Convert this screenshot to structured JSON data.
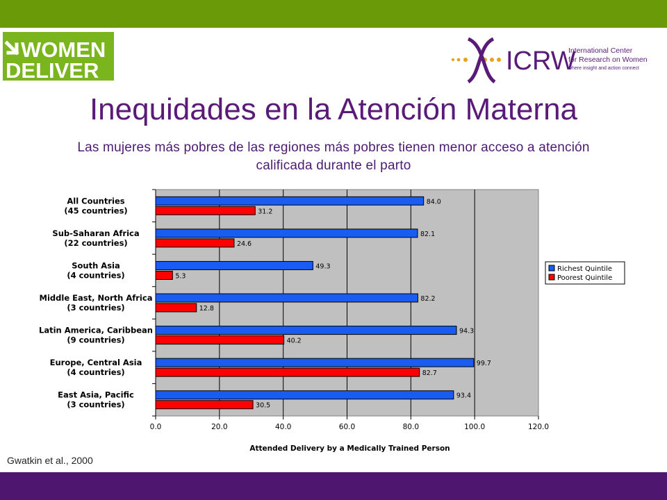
{
  "slide": {
    "title": "Inequidades en la Atención Materna",
    "subtitle_line1": "Las mujeres más pobres de las regiones más pobres tienen menor acceso a atención",
    "subtitle_line2": "calificada durante el parto",
    "source": "Gwatkin et al., 2000"
  },
  "logos": {
    "left_line1": "WOMEN",
    "left_line2": "DELIVER",
    "right_name": "ICRW",
    "right_line1": "International Center",
    "right_line2": "for Research on Women",
    "right_line3": "where insight and action connect"
  },
  "colors": {
    "top_bar": "#6a9a07",
    "bottom_bar": "#4f1670",
    "title": "#5a1a78",
    "richest": "#1a5cf2",
    "poorest": "#ff0000",
    "plot_bg": "#c0c0c0"
  },
  "chart_data": {
    "type": "bar",
    "orientation": "horizontal",
    "categories": [
      [
        "All Countries",
        "(45 countries)"
      ],
      [
        "Sub-Saharan Africa",
        "(22 countries)"
      ],
      [
        "South Asia",
        "(4 countries)"
      ],
      [
        "Middle East, North Africa",
        "(3 countries)"
      ],
      [
        "Latin America, Caribbean",
        "(9 countries)"
      ],
      [
        "Europe, Central Asia",
        "(4 countries)"
      ],
      [
        "East Asia, Pacific",
        "(3 countries)"
      ]
    ],
    "series": [
      {
        "name": "Richest Quintile",
        "values": [
          84.0,
          82.1,
          49.3,
          82.2,
          94.3,
          99.7,
          93.4
        ],
        "labels": [
          "84.0",
          "82.1",
          "49.3",
          "82.2",
          "94.3",
          "99.7",
          "93.4"
        ]
      },
      {
        "name": "Poorest Quintile",
        "values": [
          31.2,
          24.6,
          5.3,
          12.8,
          40.2,
          82.7,
          30.5
        ],
        "labels": [
          "31.2",
          "24.6",
          "5.3",
          "12.8",
          "40.2",
          "82.7",
          "30.5"
        ]
      }
    ],
    "xlabel": "Attended Delivery by a Medically Trained Person",
    "xlim": [
      0,
      120
    ],
    "xticks": [
      "0.0",
      "20.0",
      "40.0",
      "60.0",
      "80.0",
      "100.0",
      "120.0"
    ],
    "grid": "vertical",
    "legend_position": "right"
  }
}
